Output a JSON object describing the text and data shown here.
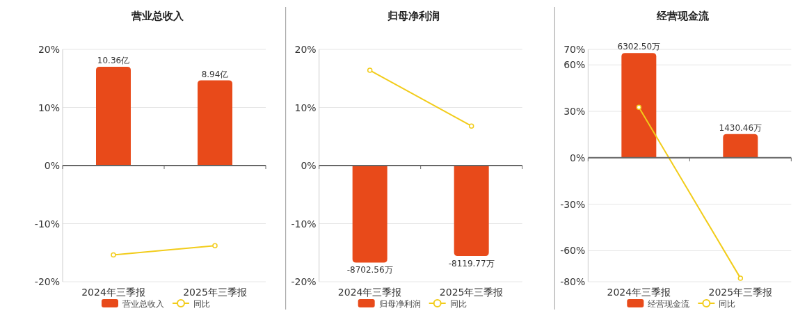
{
  "chart_data": [
    {
      "type": "bar",
      "title": "营业总收入",
      "categories": [
        "2024年三季报",
        "2025年三季报"
      ],
      "series": [
        {
          "name": "营业总收入",
          "axis": "y2",
          "color": "#e84a1a",
          "values": [
            10.36,
            8.94
          ],
          "value_labels": [
            "10.36亿",
            "8.94亿"
          ]
        },
        {
          "name": "同比",
          "type": "line",
          "color": "#f2cc1a",
          "values": [
            -15.4,
            -13.8
          ],
          "marker": "circle"
        }
      ],
      "ylim": [
        -20,
        20
      ],
      "yticks": [
        {
          "value": -20,
          "label": "-20%"
        },
        {
          "value": -10,
          "label": "-10%"
        },
        {
          "value": 0,
          "label": "0%"
        },
        {
          "value": 10,
          "label": "10%"
        },
        {
          "value": 20,
          "label": "20%"
        }
      ],
      "y2lim": [
        -12.19,
        12.19
      ],
      "grid": "y",
      "legend": "bottom"
    },
    {
      "type": "bar",
      "title": "归母净利润",
      "categories": [
        "2024年三季报",
        "2025年三季报"
      ],
      "series": [
        {
          "name": "归母净利润",
          "axis": "y2",
          "color": "#e84a1a",
          "values": [
            -8702.56,
            -8119.77
          ],
          "value_labels": [
            "-8702.56万",
            "-8119.77万"
          ]
        },
        {
          "name": "同比",
          "type": "line",
          "color": "#f2cc1a",
          "values": [
            16.4,
            6.8
          ],
          "marker": "circle"
        }
      ],
      "ylim": [
        -20,
        20
      ],
      "yticks": [
        {
          "value": -20,
          "label": "-20%"
        },
        {
          "value": -10,
          "label": "-10%"
        },
        {
          "value": 0,
          "label": "0%"
        },
        {
          "value": 10,
          "label": "10%"
        },
        {
          "value": 20,
          "label": "20%"
        }
      ],
      "y2lim": [
        -10422,
        10422
      ],
      "grid": "y",
      "legend": "bottom"
    },
    {
      "type": "bar",
      "title": "经营现金流",
      "categories": [
        "2024年三季报",
        "2025年三季报"
      ],
      "series": [
        {
          "name": "经营现金流",
          "axis": "y2",
          "color": "#e84a1a",
          "values": [
            6302.5,
            1430.46
          ],
          "value_labels": [
            "6302.50万",
            "1430.46万"
          ]
        },
        {
          "name": "同比",
          "type": "line",
          "color": "#f2cc1a",
          "values": [
            32.6,
            -77.7
          ],
          "marker": "circle"
        }
      ],
      "ylim": [
        -80,
        70
      ],
      "yticks": [
        {
          "value": -80,
          "label": "-80%"
        },
        {
          "value": -60,
          "label": "-60%"
        },
        {
          "value": -30,
          "label": "-30%"
        },
        {
          "value": 0,
          "label": "0%"
        },
        {
          "value": 30,
          "label": "30%"
        },
        {
          "value": 60,
          "label": "60%"
        },
        {
          "value": 70,
          "label": "70%"
        }
      ],
      "y2lim": [
        -7448,
        6517
      ],
      "grid": "y",
      "legend": "bottom"
    }
  ]
}
